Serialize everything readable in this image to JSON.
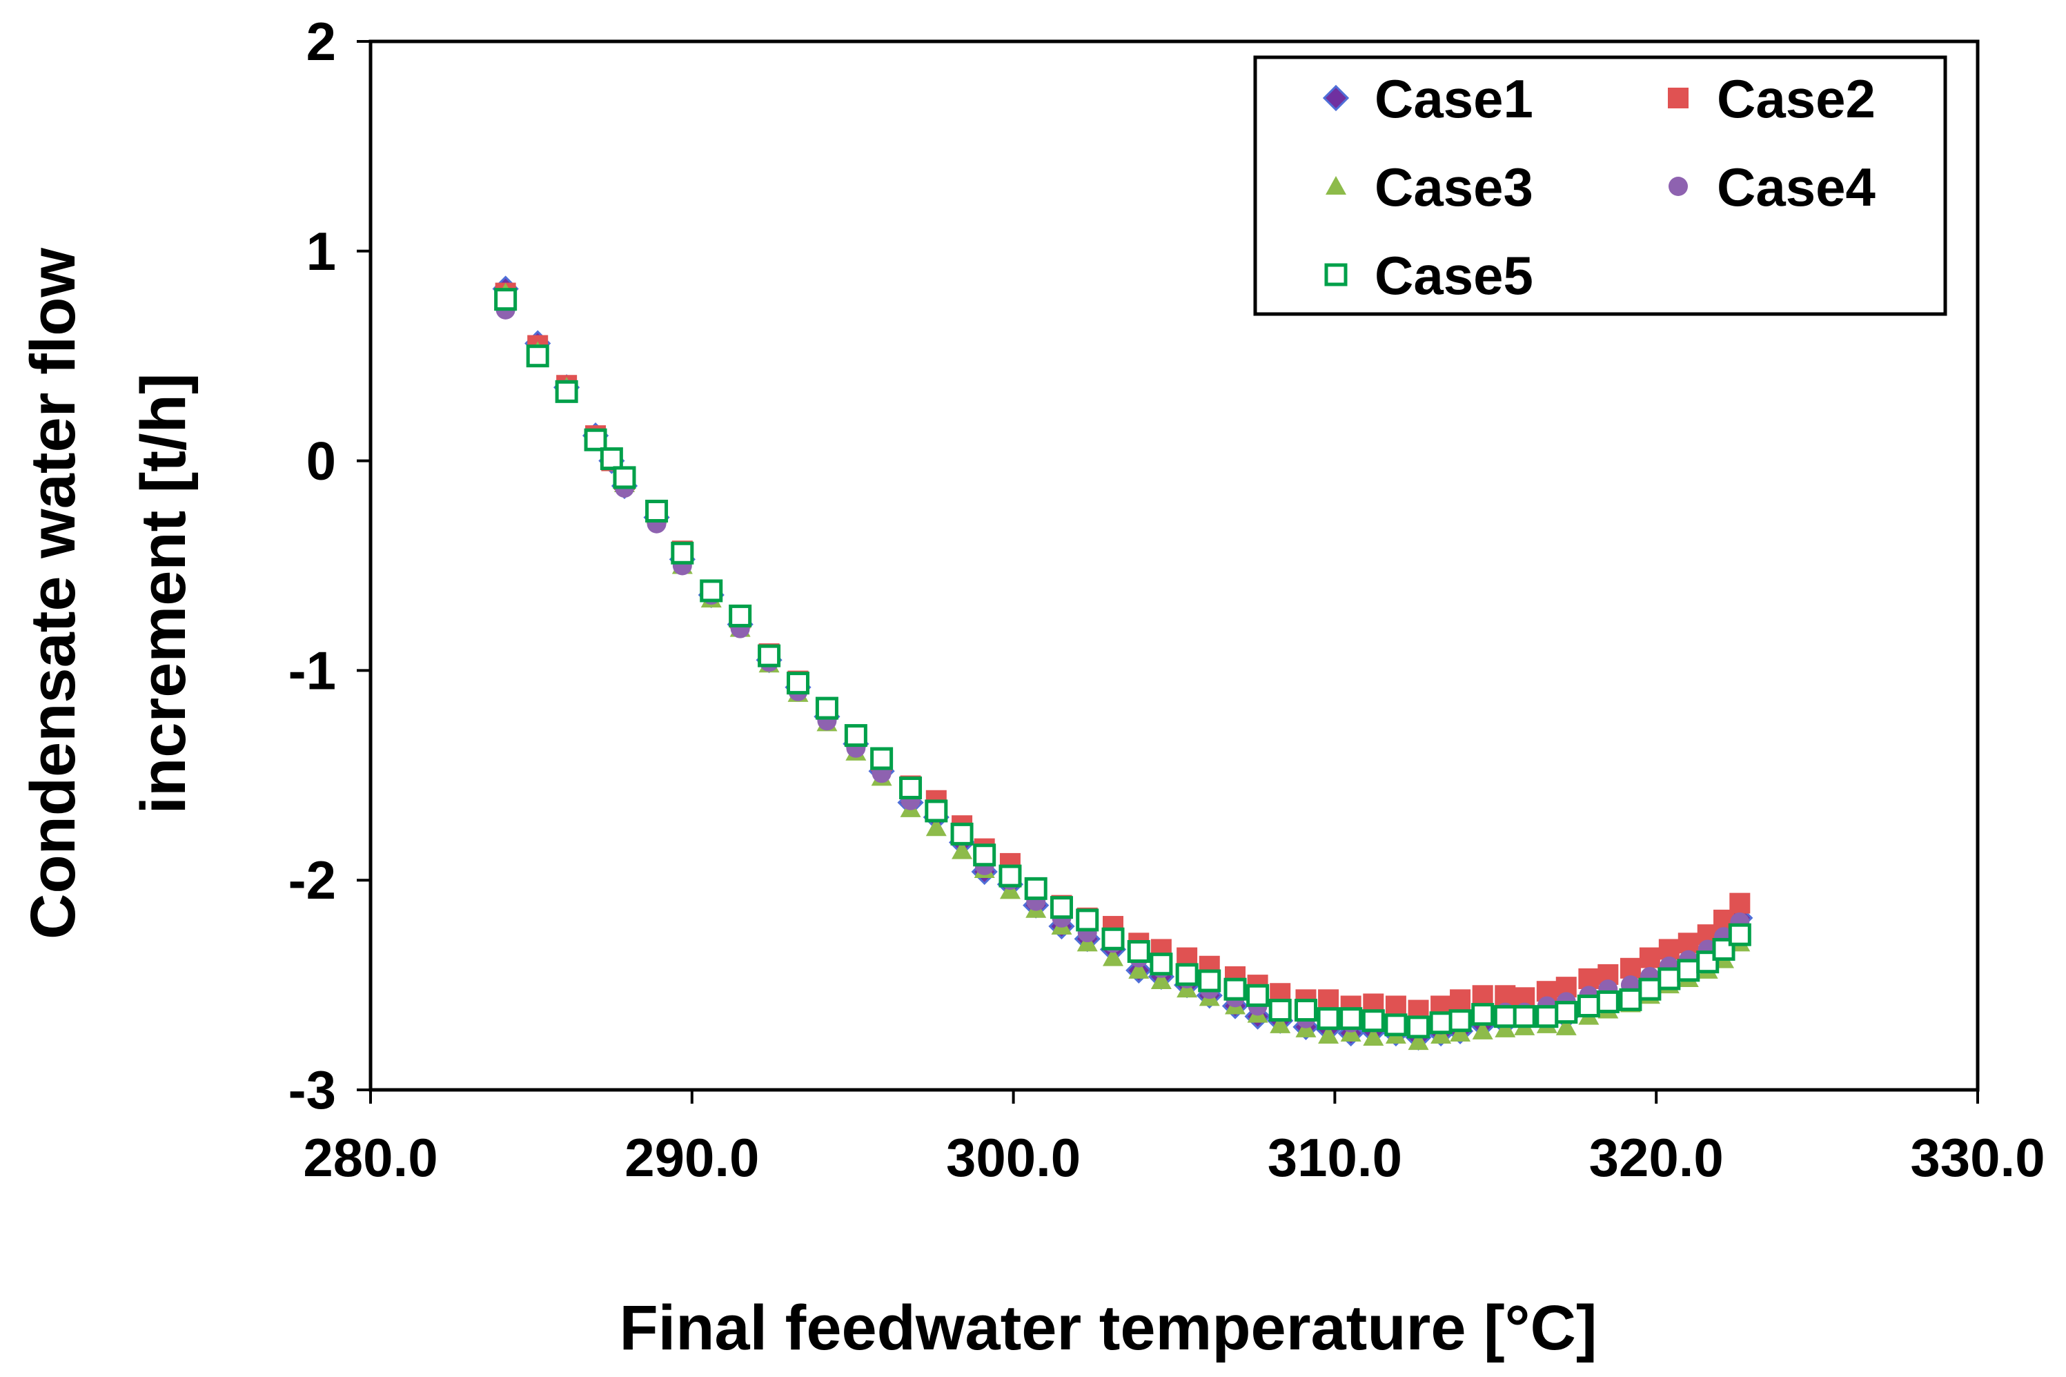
{
  "chart_data": {
    "type": "scatter",
    "title": "",
    "xlabel": "Final feedwater temperature [°C]",
    "ylabel_lines": [
      "Condensate water flow",
      "increment [t/h]"
    ],
    "xlim": [
      280,
      330
    ],
    "ylim": [
      -3,
      2
    ],
    "x_ticks": [
      280,
      290,
      300,
      310,
      320,
      330
    ],
    "x_tick_labels": [
      "280.0",
      "290.0",
      "300.0",
      "310.0",
      "320.0",
      "330.0"
    ],
    "y_ticks": [
      -3,
      -2,
      -1,
      0,
      1,
      2
    ],
    "y_tick_labels": [
      "-3",
      "-2",
      "-1",
      "0",
      "1",
      "2"
    ],
    "grid": false,
    "legend_position": "top-right",
    "x": [
      284.2,
      285.2,
      286.1,
      287.0,
      287.5,
      287.9,
      288.9,
      289.7,
      290.6,
      291.5,
      292.4,
      293.3,
      294.2,
      295.1,
      295.9,
      296.8,
      297.6,
      298.4,
      299.1,
      299.9,
      300.7,
      301.5,
      302.3,
      303.1,
      303.9,
      304.6,
      305.4,
      306.1,
      306.9,
      307.6,
      308.3,
      309.1,
      309.8,
      310.5,
      311.2,
      311.9,
      312.6,
      313.3,
      313.9,
      314.6,
      315.3,
      315.9,
      316.6,
      317.2,
      317.9,
      318.5,
      319.2,
      319.8,
      320.4,
      321.0,
      321.6,
      322.1,
      322.6
    ],
    "series": [
      {
        "name": "Case1",
        "marker": "diamond",
        "color": "#7030a0",
        "edge_color": "#4f6fd8",
        "y": [
          0.82,
          0.56,
          0.35,
          0.12,
          0.0,
          -0.12,
          -0.27,
          -0.47,
          -0.64,
          -0.78,
          -0.95,
          -1.08,
          -1.22,
          -1.35,
          -1.48,
          -1.63,
          -1.7,
          -1.82,
          -1.96,
          -2.02,
          -2.12,
          -2.22,
          -2.28,
          -2.33,
          -2.43,
          -2.46,
          -2.5,
          -2.55,
          -2.6,
          -2.65,
          -2.67,
          -2.7,
          -2.71,
          -2.73,
          -2.72,
          -2.73,
          -2.75,
          -2.73,
          -2.72,
          -2.69,
          -2.68,
          -2.67,
          -2.66,
          -2.65,
          -2.6,
          -2.58,
          -2.55,
          -2.5,
          -2.46,
          -2.42,
          -2.36,
          -2.3,
          -2.18
        ]
      },
      {
        "name": "Case2",
        "marker": "square",
        "color": "#e05252",
        "y": [
          0.8,
          0.55,
          0.36,
          0.12,
          0.0,
          -0.09,
          -0.24,
          -0.43,
          -0.62,
          -0.75,
          -0.92,
          -1.05,
          -1.18,
          -1.31,
          -1.43,
          -1.55,
          -1.62,
          -1.74,
          -1.85,
          -1.92,
          -2.04,
          -2.12,
          -2.18,
          -2.22,
          -2.3,
          -2.33,
          -2.37,
          -2.41,
          -2.46,
          -2.5,
          -2.54,
          -2.57,
          -2.57,
          -2.6,
          -2.59,
          -2.6,
          -2.62,
          -2.6,
          -2.57,
          -2.55,
          -2.55,
          -2.56,
          -2.53,
          -2.51,
          -2.47,
          -2.45,
          -2.42,
          -2.37,
          -2.33,
          -2.3,
          -2.26,
          -2.19,
          -2.11
        ]
      },
      {
        "name": "Case3",
        "marker": "triangle",
        "color": "#8dbb4a",
        "y": [
          0.8,
          0.52,
          0.35,
          0.1,
          0.0,
          -0.11,
          -0.26,
          -0.5,
          -0.66,
          -0.8,
          -0.97,
          -1.11,
          -1.25,
          -1.39,
          -1.51,
          -1.66,
          -1.75,
          -1.86,
          -1.95,
          -2.05,
          -2.14,
          -2.22,
          -2.3,
          -2.37,
          -2.43,
          -2.48,
          -2.52,
          -2.56,
          -2.6,
          -2.64,
          -2.69,
          -2.71,
          -2.74,
          -2.73,
          -2.75,
          -2.74,
          -2.77,
          -2.74,
          -2.73,
          -2.72,
          -2.71,
          -2.7,
          -2.69,
          -2.7,
          -2.65,
          -2.62,
          -2.59,
          -2.55,
          -2.5,
          -2.47,
          -2.43,
          -2.38,
          -2.3
        ]
      },
      {
        "name": "Case4",
        "marker": "circle",
        "color": "#8e62b0",
        "y": [
          0.72,
          0.5,
          0.34,
          0.1,
          0.0,
          -0.13,
          -0.3,
          -0.5,
          -0.64,
          -0.8,
          -0.96,
          -1.1,
          -1.24,
          -1.37,
          -1.49,
          -1.62,
          -1.68,
          -1.79,
          -1.93,
          -2.0,
          -2.1,
          -2.18,
          -2.25,
          -2.3,
          -2.37,
          -2.42,
          -2.47,
          -2.52,
          -2.56,
          -2.6,
          -2.63,
          -2.66,
          -2.67,
          -2.68,
          -2.68,
          -2.69,
          -2.7,
          -2.69,
          -2.67,
          -2.64,
          -2.63,
          -2.63,
          -2.6,
          -2.58,
          -2.55,
          -2.52,
          -2.5,
          -2.46,
          -2.41,
          -2.38,
          -2.33,
          -2.27,
          -2.2
        ]
      },
      {
        "name": "Case5",
        "marker": "open-square",
        "color": "#00a04a",
        "y": [
          0.77,
          0.5,
          0.33,
          0.1,
          0.01,
          -0.08,
          -0.24,
          -0.44,
          -0.62,
          -0.74,
          -0.93,
          -1.06,
          -1.18,
          -1.31,
          -1.42,
          -1.56,
          -1.67,
          -1.78,
          -1.88,
          -1.98,
          -2.04,
          -2.13,
          -2.19,
          -2.28,
          -2.34,
          -2.4,
          -2.45,
          -2.48,
          -2.52,
          -2.55,
          -2.62,
          -2.62,
          -2.66,
          -2.66,
          -2.67,
          -2.69,
          -2.7,
          -2.68,
          -2.67,
          -2.64,
          -2.65,
          -2.65,
          -2.65,
          -2.63,
          -2.6,
          -2.58,
          -2.57,
          -2.52,
          -2.47,
          -2.43,
          -2.39,
          -2.33,
          -2.26
        ]
      }
    ]
  }
}
